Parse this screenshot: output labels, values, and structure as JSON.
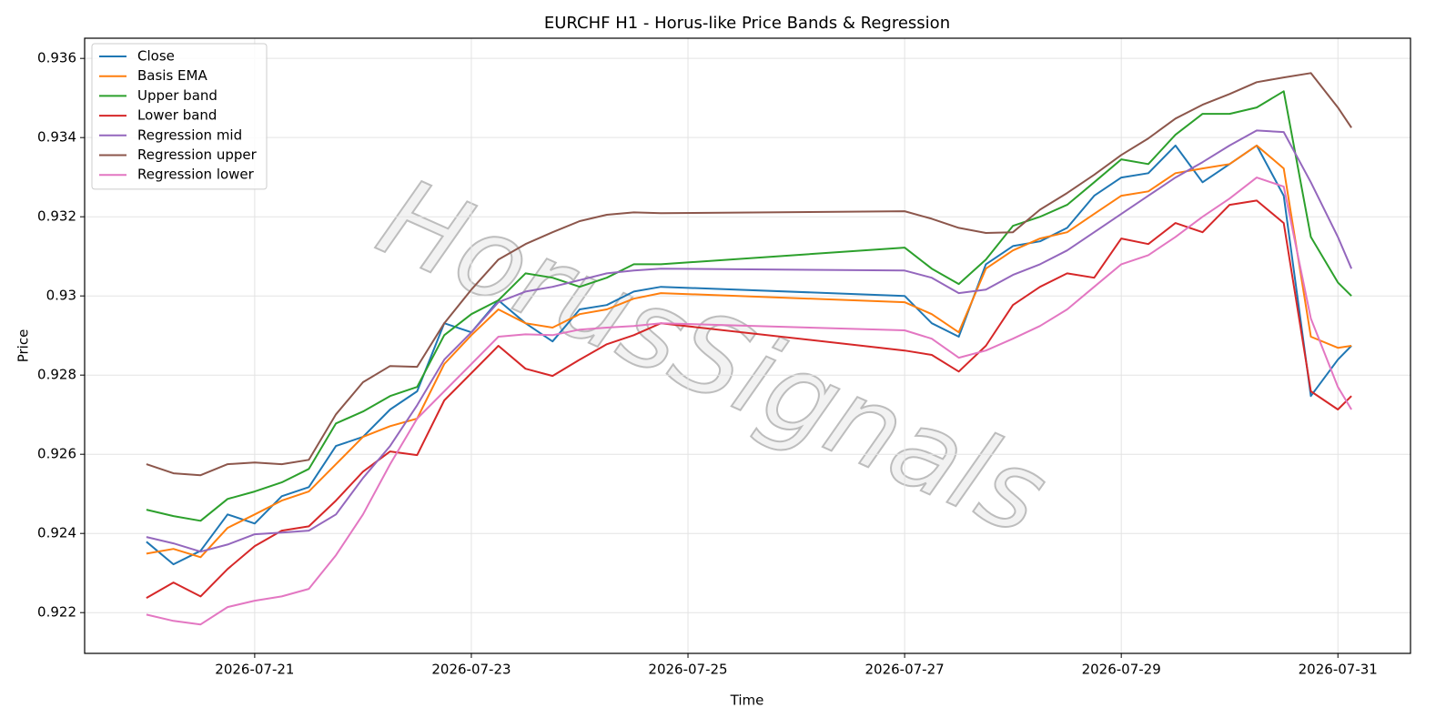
{
  "chart_data": {
    "type": "line",
    "title": "EURCHF H1 - Horus-like Price Bands & Regression",
    "xlabel": "Time",
    "ylabel": "Price",
    "watermark": "HorusSignals",
    "grid": true,
    "legend": "upper left",
    "x": [
      20,
      20.25,
      20.5,
      20.75,
      21,
      21.25,
      21.5,
      21.75,
      22,
      22.25,
      22.5,
      22.75,
      23,
      23.25,
      23.5,
      23.75,
      24,
      24.25,
      24.5,
      24.75,
      27,
      27.25,
      27.5,
      27.75,
      28,
      28.25,
      28.5,
      28.75,
      29,
      29.25,
      29.5,
      29.75,
      30,
      30.25,
      30.5,
      30.75,
      31,
      31.125
    ],
    "xlim": [
      19.43,
      31.67
    ],
    "xticks": [
      {
        "value": 21,
        "label": "2026-07-21"
      },
      {
        "value": 23,
        "label": "2026-07-23"
      },
      {
        "value": 25,
        "label": "2026-07-25"
      },
      {
        "value": 27,
        "label": "2026-07-27"
      },
      {
        "value": 29,
        "label": "2026-07-29"
      },
      {
        "value": 31,
        "label": "2026-07-31"
      }
    ],
    "ylim": [
      0.92097,
      0.93651
    ],
    "yticks": [
      0.922,
      0.924,
      0.926,
      0.928,
      0.93,
      0.932,
      0.934,
      0.936
    ],
    "series": [
      {
        "name": "Close",
        "color": "#1f77b4",
        "values": [
          0.92379,
          0.92322,
          0.92356,
          0.92448,
          0.92425,
          0.92494,
          0.92517,
          0.92621,
          0.92644,
          0.92713,
          0.92759,
          0.92931,
          0.92908,
          0.92989,
          0.92931,
          0.92885,
          0.92966,
          0.92977,
          0.93011,
          0.93023,
          0.93,
          0.92931,
          0.92897,
          0.9308,
          0.93126,
          0.93138,
          0.93172,
          0.93253,
          0.93299,
          0.9331,
          0.9338,
          0.93287,
          0.93333,
          0.9338,
          0.93253,
          0.92747,
          0.92839,
          0.92874
        ]
      },
      {
        "name": "Basis EMA",
        "color": "#ff7f0e",
        "values": [
          0.92349,
          0.92361,
          0.9234,
          0.92414,
          0.92448,
          0.92483,
          0.92506,
          0.92575,
          0.92644,
          0.92671,
          0.9269,
          0.92828,
          0.92901,
          0.92966,
          0.92931,
          0.9292,
          0.92954,
          0.92966,
          0.92993,
          0.93007,
          0.92984,
          0.92954,
          0.92908,
          0.93069,
          0.93115,
          0.93145,
          0.93161,
          0.93207,
          0.93253,
          0.93264,
          0.9331,
          0.93322,
          0.93333,
          0.9338,
          0.93322,
          0.92897,
          0.92869,
          0.92874
        ]
      },
      {
        "name": "Upper band",
        "color": "#2ca02c",
        "values": [
          0.9246,
          0.92444,
          0.92432,
          0.92487,
          0.92506,
          0.92529,
          0.92563,
          0.92678,
          0.92708,
          0.92747,
          0.9277,
          0.92901,
          0.92954,
          0.92989,
          0.93057,
          0.93046,
          0.93023,
          0.93046,
          0.9308,
          0.9308,
          0.93122,
          0.93069,
          0.9303,
          0.93092,
          0.93177,
          0.932,
          0.9323,
          0.93287,
          0.93345,
          0.93333,
          0.93407,
          0.9346,
          0.9346,
          0.93476,
          0.93517,
          0.93149,
          0.93034,
          0.93
        ]
      },
      {
        "name": "Lower band",
        "color": "#d62728",
        "values": [
          0.92237,
          0.92276,
          0.92241,
          0.9231,
          0.92368,
          0.92407,
          0.92418,
          0.92483,
          0.92556,
          0.92607,
          0.92598,
          0.92736,
          0.92805,
          0.92874,
          0.92816,
          0.92798,
          0.92839,
          0.92878,
          0.92901,
          0.92931,
          0.92862,
          0.92851,
          0.92809,
          0.92874,
          0.92977,
          0.93023,
          0.93057,
          0.93046,
          0.93145,
          0.93131,
          0.93184,
          0.93161,
          0.9323,
          0.93241,
          0.93184,
          0.92759,
          0.92713,
          0.92747
        ]
      },
      {
        "name": "Regression mid",
        "color": "#9467bd",
        "values": [
          0.92391,
          0.92375,
          0.92354,
          0.92372,
          0.92398,
          0.92402,
          0.92407,
          0.92448,
          0.9254,
          0.92621,
          0.92724,
          0.92839,
          0.92908,
          0.92984,
          0.93011,
          0.93023,
          0.9304,
          0.93057,
          0.93064,
          0.93069,
          0.93064,
          0.93046,
          0.93007,
          0.93016,
          0.93053,
          0.9308,
          0.93115,
          0.93161,
          0.93207,
          0.93253,
          0.93299,
          0.93338,
          0.9338,
          0.93418,
          0.93414,
          0.93287,
          0.93149,
          0.93069
        ]
      },
      {
        "name": "Regression upper",
        "color": "#8c564b",
        "values": [
          0.92575,
          0.92552,
          0.92547,
          0.92575,
          0.92579,
          0.92575,
          0.92586,
          0.92701,
          0.92782,
          0.92823,
          0.92821,
          0.92931,
          0.93016,
          0.93092,
          0.93131,
          0.93161,
          0.93189,
          0.93205,
          0.93211,
          0.93209,
          0.93214,
          0.93195,
          0.93172,
          0.93159,
          0.93161,
          0.93218,
          0.9326,
          0.93306,
          0.93356,
          0.93398,
          0.93448,
          0.93483,
          0.9351,
          0.9354,
          0.93552,
          0.93563,
          0.93476,
          0.93425
        ]
      },
      {
        "name": "Regression lower",
        "color": "#e377c2",
        "values": [
          0.92195,
          0.92179,
          0.9217,
          0.92214,
          0.9223,
          0.92241,
          0.9226,
          0.92345,
          0.92448,
          0.92575,
          0.9269,
          0.92759,
          0.92828,
          0.92897,
          0.92903,
          0.92901,
          0.92915,
          0.9292,
          0.92924,
          0.92931,
          0.92913,
          0.92892,
          0.92844,
          0.92862,
          0.92892,
          0.92924,
          0.92966,
          0.93023,
          0.9308,
          0.93103,
          0.93149,
          0.932,
          0.93246,
          0.93299,
          0.93276,
          0.92943,
          0.9277,
          0.92713
        ]
      }
    ]
  }
}
